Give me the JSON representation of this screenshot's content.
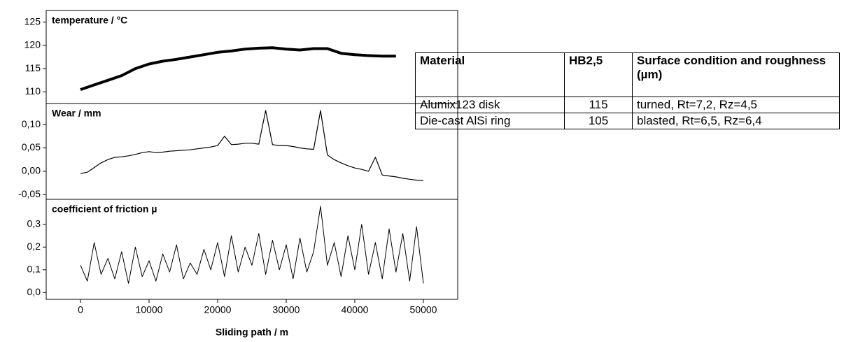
{
  "chart_data": [
    {
      "type": "line",
      "title": "temperature / °C",
      "x": [
        0,
        2000,
        4000,
        6000,
        8000,
        10000,
        12000,
        14000,
        16000,
        18000,
        20000,
        22000,
        24000,
        26000,
        28000,
        30000,
        32000,
        34000,
        36000,
        38000,
        40000,
        42000,
        44000,
        46000
      ],
      "series": [
        {
          "name": "temperature",
          "color": "#000000",
          "values": [
            110.5,
            111.5,
            112.5,
            113.5,
            115,
            116,
            116.6,
            117,
            117.5,
            118,
            118.5,
            118.8,
            119.2,
            119.4,
            119.5,
            119.2,
            119,
            119.3,
            119.3,
            118.3,
            118,
            117.8,
            117.7,
            117.7
          ]
        }
      ],
      "xlim": [
        -5000,
        55000
      ],
      "ylim": [
        107.5,
        127.5
      ],
      "yticks": [
        110,
        115,
        120,
        125
      ]
    },
    {
      "type": "line",
      "title": "Wear / mm",
      "x": [
        0,
        1000,
        2000,
        3000,
        4000,
        5000,
        6000,
        7000,
        8000,
        9000,
        10000,
        11000,
        12000,
        13000,
        14000,
        15000,
        16000,
        17000,
        18000,
        19000,
        20000,
        21000,
        22000,
        23000,
        24000,
        25000,
        26000,
        27000,
        28000,
        29000,
        30000,
        31000,
        32000,
        33000,
        34000,
        35000,
        36000,
        37000,
        38000,
        39000,
        40000,
        41000,
        42000,
        43000,
        44000,
        45000,
        46000,
        47000,
        48000,
        49000,
        50000
      ],
      "series": [
        {
          "name": "wear",
          "color": "#000000",
          "values": [
            -0.005,
            -0.002,
            0.008,
            0.018,
            0.025,
            0.03,
            0.031,
            0.033,
            0.036,
            0.04,
            0.042,
            0.04,
            0.041,
            0.043,
            0.044,
            0.045,
            0.046,
            0.048,
            0.05,
            0.052,
            0.055,
            0.075,
            0.057,
            0.058,
            0.06,
            0.06,
            0.058,
            0.13,
            0.057,
            0.055,
            0.055,
            0.053,
            0.05,
            0.048,
            0.047,
            0.13,
            0.035,
            0.025,
            0.018,
            0.012,
            0.007,
            0.004,
            0.0,
            0.03,
            -0.008,
            -0.01,
            -0.012,
            -0.015,
            -0.017,
            -0.019,
            -0.02
          ]
        }
      ],
      "xlim": [
        -5000,
        55000
      ],
      "ylim": [
        -0.06,
        0.145
      ],
      "yticks": [
        {
          "value": -0.05,
          "label": "-0,05"
        },
        {
          "value": 0,
          "label": "0,00"
        },
        {
          "value": 0.05,
          "label": "0,05"
        },
        {
          "value": 0.1,
          "label": "0,10"
        }
      ]
    },
    {
      "type": "line",
      "title": "coefficient of friction µ",
      "xlabel": "Sliding path / m",
      "x": [
        0,
        1000,
        2000,
        3000,
        4000,
        5000,
        6000,
        7000,
        8000,
        9000,
        10000,
        11000,
        12000,
        13000,
        14000,
        15000,
        16000,
        17000,
        18000,
        19000,
        20000,
        21000,
        22000,
        23000,
        24000,
        25000,
        26000,
        27000,
        28000,
        29000,
        30000,
        31000,
        32000,
        33000,
        34000,
        35000,
        36000,
        37000,
        38000,
        39000,
        40000,
        41000,
        42000,
        43000,
        44000,
        45000,
        46000,
        47000,
        48000,
        49000,
        50000
      ],
      "series": [
        {
          "name": "friction",
          "color": "#000000",
          "values": [
            0.12,
            0.05,
            0.22,
            0.08,
            0.15,
            0.06,
            0.18,
            0.04,
            0.2,
            0.07,
            0.14,
            0.05,
            0.17,
            0.09,
            0.21,
            0.06,
            0.13,
            0.08,
            0.19,
            0.1,
            0.22,
            0.07,
            0.25,
            0.09,
            0.2,
            0.12,
            0.26,
            0.08,
            0.23,
            0.1,
            0.21,
            0.06,
            0.24,
            0.09,
            0.18,
            0.38,
            0.12,
            0.22,
            0.07,
            0.25,
            0.1,
            0.3,
            0.08,
            0.22,
            0.06,
            0.28,
            0.09,
            0.26,
            0.05,
            0.29,
            0.04
          ]
        }
      ],
      "xlim": [
        -5000,
        55000
      ],
      "ylim": [
        -0.03,
        0.41
      ],
      "xticks": [
        0,
        10000,
        20000,
        30000,
        40000,
        50000
      ],
      "yticks": [
        {
          "value": 0,
          "label": "0,0"
        },
        {
          "value": 0.1,
          "label": "0,1"
        },
        {
          "value": 0.2,
          "label": "0,2"
        },
        {
          "value": 0.3,
          "label": "0,3"
        }
      ]
    }
  ],
  "table": {
    "header": [
      "Material",
      "HB2,5",
      "Surface condition and roughness (µm)"
    ],
    "rows": [
      [
        "Alumix123 disk",
        "115",
        "turned, Rt=7,2, Rz=4,5"
      ],
      [
        "Die-cast AlSi ring",
        "105",
        "blasted, Rt=6,5, Rz=6,4"
      ]
    ]
  }
}
